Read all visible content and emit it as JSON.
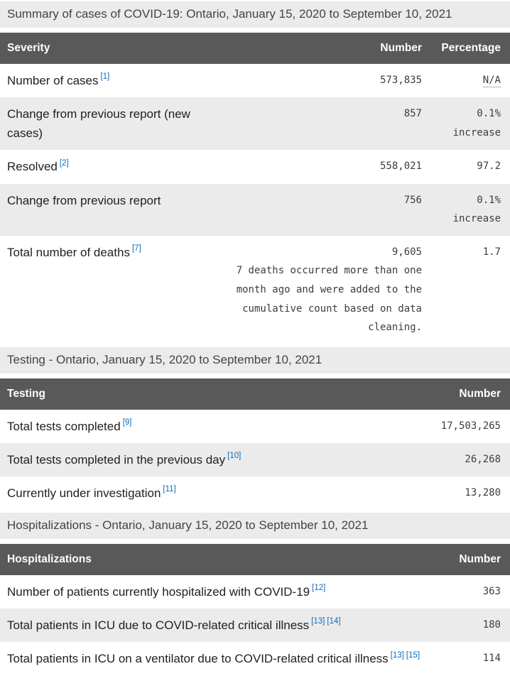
{
  "colors": {
    "header_bg": "#595959",
    "header_text": "#ffffff",
    "stripe_bg": "#ebebeb",
    "caption_bg": "#ebebeb",
    "footnote_link_blue": "#0a6cbf",
    "label_text": "#212121",
    "numeric_text": "#3d3d3d"
  },
  "summary": {
    "caption": "Summary of cases of COVID-19: Ontario, January 15, 2020 to September 10, 2021",
    "headers": {
      "severity": "Severity",
      "number": "Number",
      "percentage": "Percentage"
    },
    "rows": [
      {
        "label": "Number of cases",
        "ref1": "[1]",
        "number": "573,835",
        "pct": "N/A"
      },
      {
        "label": "Change from previous report (new cases)",
        "number": "857",
        "pct": "0.1% increase"
      },
      {
        "label": "Resolved",
        "ref1": "[2]",
        "number": "558,021",
        "pct": "97.2"
      },
      {
        "label": "Change from previous report",
        "number": "756",
        "pct": "0.1% increase"
      },
      {
        "label": "Total number of deaths",
        "ref1": "[7]",
        "number": "9,605",
        "note": "7 deaths occurred more than one month ago and were added to the cumulative count based on data cleaning.",
        "pct": "1.7"
      }
    ]
  },
  "testing": {
    "caption": "Testing - Ontario, January 15, 2020 to September 10, 2021",
    "headers": {
      "testing": "Testing",
      "number": "Number"
    },
    "rows": [
      {
        "label": "Total tests completed",
        "ref1": "[9]",
        "number": "17,503,265"
      },
      {
        "label": "Total tests completed in the previous day",
        "ref1": "[10]",
        "number": "26,268"
      },
      {
        "label": "Currently under investigation",
        "ref1": "[11]",
        "number": "13,280"
      }
    ]
  },
  "hospitalizations": {
    "caption": "Hospitalizations - Ontario, January 15, 2020 to September 10, 2021",
    "headers": {
      "hospitalizations": "Hospitalizations",
      "number": "Number"
    },
    "rows": [
      {
        "label": "Number of patients currently hospitalized with COVID-19",
        "ref1": "[12]",
        "number": "363"
      },
      {
        "label": "Total patients in ICU due to COVID-related critical illness",
        "ref1": "[13]",
        "ref2": "[14]",
        "number": "180"
      },
      {
        "label": "Total patients in ICU on a ventilator due to COVID-related critical illness",
        "ref1": "[13]",
        "ref2": "[15]",
        "number": "114"
      }
    ]
  }
}
